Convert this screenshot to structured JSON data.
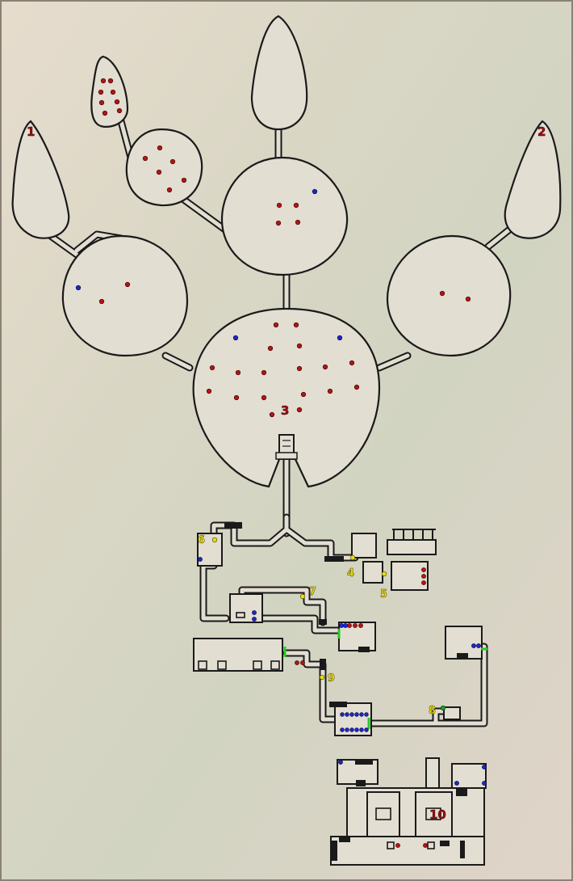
{
  "map": {
    "labels": [
      {
        "id": "1",
        "kind": "area"
      },
      {
        "id": "2",
        "kind": "area"
      },
      {
        "id": "3",
        "kind": "area"
      },
      {
        "id": "4",
        "kind": "point"
      },
      {
        "id": "5",
        "kind": "point"
      },
      {
        "id": "6",
        "kind": "point"
      },
      {
        "id": "7",
        "kind": "point"
      },
      {
        "id": "8",
        "kind": "point"
      },
      {
        "id": "9",
        "kind": "point"
      },
      {
        "id": "10",
        "kind": "area"
      }
    ],
    "colors": {
      "background": "#ddd6c6",
      "floor": "#e3ded2",
      "wall": "#1a1a1a",
      "enemy_red": "#b01616",
      "marker_blue": "#1c28c8",
      "waypoint_yellow": "#e6dc14",
      "marker_green": "#1aa02a",
      "door_green": "#22cc22"
    },
    "legend_markers": [
      "red-dot",
      "blue-dot",
      "yellow-dot",
      "green-dot",
      "green-door"
    ]
  }
}
